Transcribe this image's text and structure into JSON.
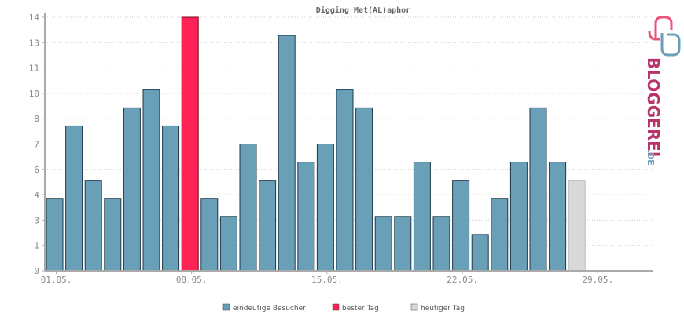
{
  "chart_data": {
    "type": "bar",
    "title": "Digging Met(AL)aphor",
    "xlabel": "",
    "ylabel": "",
    "y_tick_labels": [
      "0",
      "1",
      "3",
      "4",
      "6",
      "7",
      "8",
      "10",
      "11",
      "13",
      "14"
    ],
    "x_tick_labels": [
      "01.05.",
      "08.05.",
      "15.05.",
      "22.05.",
      "29.05."
    ],
    "categories": [
      "01.05.",
      "02.05.",
      "03.05.",
      "04.05.",
      "05.05.",
      "06.05.",
      "07.05.",
      "08.05.",
      "09.05.",
      "10.05.",
      "11.05.",
      "12.05.",
      "13.05.",
      "14.05.",
      "15.05.",
      "16.05.",
      "17.05.",
      "18.05.",
      "19.05.",
      "20.05.",
      "21.05.",
      "22.05.",
      "23.05.",
      "24.05.",
      "25.05.",
      "26.05.",
      "27.05.",
      "28.05.",
      "29.05.",
      "30.05.",
      "31.05."
    ],
    "values": [
      4,
      8,
      5,
      4,
      9,
      10,
      8,
      14,
      4,
      3,
      7,
      5,
      13,
      6,
      7,
      10,
      9,
      3,
      3,
      6,
      3,
      5,
      2,
      4,
      6,
      9,
      6,
      5,
      0,
      0,
      0
    ],
    "bar_types": [
      "normal",
      "normal",
      "normal",
      "normal",
      "normal",
      "normal",
      "normal",
      "best",
      "normal",
      "normal",
      "normal",
      "normal",
      "normal",
      "normal",
      "normal",
      "normal",
      "normal",
      "normal",
      "normal",
      "normal",
      "normal",
      "normal",
      "normal",
      "normal",
      "normal",
      "normal",
      "normal",
      "today",
      "none",
      "none",
      "none"
    ],
    "ylim": [
      0,
      14
    ],
    "grid": true,
    "legend_position": "bottom-center",
    "legend": [
      {
        "label": "eindeutige Besucher",
        "color": "#6a9fb8"
      },
      {
        "label": "bester Tag",
        "color": "#ff2255"
      },
      {
        "label": "heutiger Tag",
        "color": "#d8d8d8"
      }
    ]
  },
  "colors": {
    "normal": "#6a9fb8",
    "best": "#ff2255",
    "today": "#d8d8d8",
    "axis": "#aaaaaa",
    "grid": "#cccccc"
  },
  "logo": {
    "name": "BLOGGEREI",
    "suffix": ".DE"
  }
}
